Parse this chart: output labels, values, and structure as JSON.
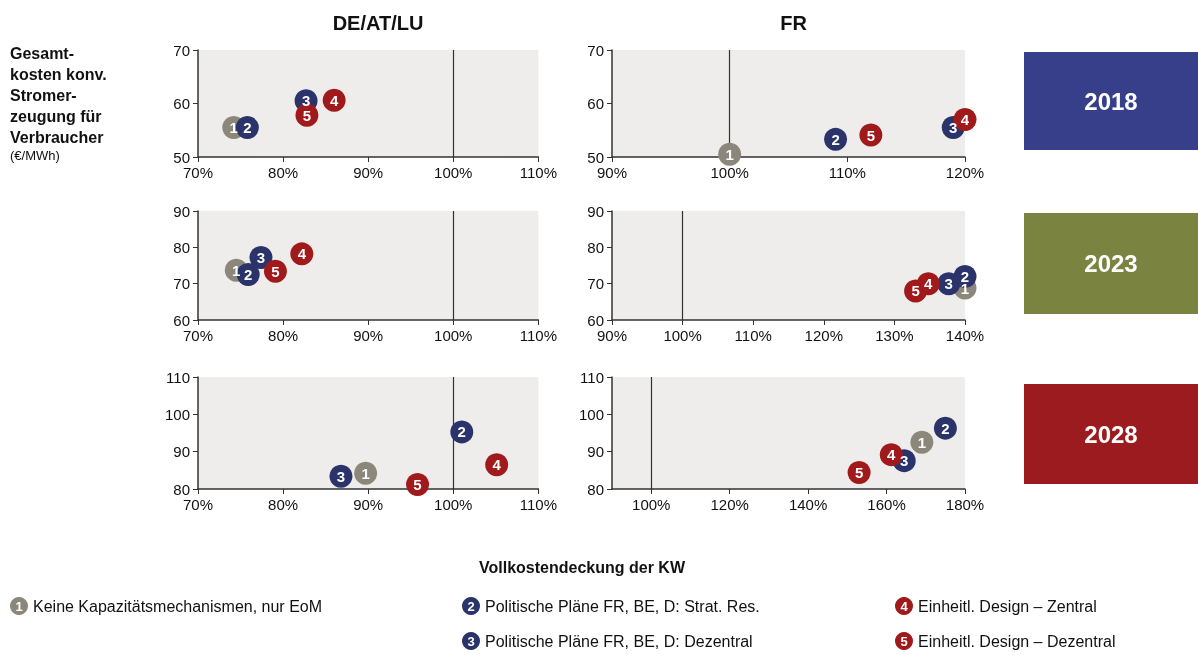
{
  "chart_data": [
    {
      "type": "scatter",
      "title": "DE/AT/LU",
      "ylabel": "Gesamt-\nkosten konv.\nStromer-\nzeugung für\nVerbraucher\n(€/MWh)",
      "marker": "circle",
      "xlim": [
        70,
        110
      ],
      "xticks": [
        {
          "value": 70,
          "label": "70%"
        },
        {
          "value": 80,
          "label": "80%"
        },
        {
          "value": 90,
          "label": "90%"
        },
        {
          "value": 100,
          "label": "100%"
        },
        {
          "value": 110,
          "label": "110%"
        }
      ],
      "ylim": [
        50,
        70
      ],
      "yticks": [
        50,
        60,
        70
      ],
      "ref_lines": [
        {
          "axis": "x",
          "value": 100,
          "color": "#333333"
        }
      ],
      "annotations": [
        {
          "text": "1",
          "x": 74.2,
          "y": 55.5
        },
        {
          "text": "2",
          "x": 75.8,
          "y": 55.5
        },
        {
          "text": "3",
          "x": 82.7,
          "y": 60.5
        },
        {
          "text": "4",
          "x": 86,
          "y": 60.6
        },
        {
          "text": "5",
          "x": 82.8,
          "y": 57.8
        }
      ],
      "series": [
        {
          "color": "#8b877a",
          "x": [
            74.2
          ],
          "values": [
            55.5
          ]
        },
        {
          "color": "#2b336b",
          "x": [
            75.8
          ],
          "values": [
            55.5
          ]
        },
        {
          "color": "#2b336b",
          "x": [
            82.7
          ],
          "values": [
            60.5
          ]
        },
        {
          "color": "#a01a1c",
          "x": [
            86
          ],
          "values": [
            60.6
          ]
        },
        {
          "color": "#a01a1c",
          "x": [
            82.8
          ],
          "values": [
            57.8
          ]
        }
      ]
    },
    {
      "type": "scatter",
      "title": "FR",
      "marker": "circle",
      "xlim": [
        90,
        120
      ],
      "xticks": [
        {
          "value": 90,
          "label": "90%"
        },
        {
          "value": 100,
          "label": "100%"
        },
        {
          "value": 110,
          "label": "110%"
        },
        {
          "value": 120,
          "label": "120%"
        }
      ],
      "ylim": [
        50,
        70
      ],
      "yticks": [
        50,
        60,
        70
      ],
      "ref_lines": [
        {
          "axis": "x",
          "value": 100,
          "color": "#333333"
        }
      ],
      "annotations": [
        "2018",
        {
          "text": "1",
          "x": 100,
          "y": 50.5
        },
        {
          "text": "2",
          "x": 109,
          "y": 53.3
        },
        {
          "text": "3",
          "x": 119,
          "y": 55.5
        },
        {
          "text": "4",
          "x": 120,
          "y": 57
        },
        {
          "text": "5",
          "x": 112,
          "y": 54.1
        }
      ],
      "series": [
        {
          "color": "#8b877a",
          "x": [
            100
          ],
          "values": [
            50.5
          ]
        },
        {
          "color": "#2b336b",
          "x": [
            109
          ],
          "values": [
            53.3
          ]
        },
        {
          "color": "#2b336b",
          "x": [
            119
          ],
          "values": [
            55.5
          ]
        },
        {
          "color": "#a01a1c",
          "x": [
            120
          ],
          "values": [
            57
          ]
        },
        {
          "color": "#a01a1c",
          "x": [
            112
          ],
          "values": [
            54.1
          ]
        }
      ]
    },
    {
      "type": "scatter",
      "marker": "circle",
      "xlim": [
        70,
        110
      ],
      "xticks": [
        {
          "value": 70,
          "label": "70%"
        },
        {
          "value": 80,
          "label": "80%"
        },
        {
          "value": 90,
          "label": "90%"
        },
        {
          "value": 100,
          "label": "100%"
        },
        {
          "value": 110,
          "label": "110%"
        }
      ],
      "ylim": [
        60,
        90
      ],
      "yticks": [
        60,
        70,
        80,
        90
      ],
      "ref_lines": [
        {
          "axis": "x",
          "value": 100,
          "color": "#333333"
        }
      ],
      "annotations": [
        {
          "text": "1",
          "x": 74.5,
          "y": 73.7
        },
        {
          "text": "2",
          "x": 75.9,
          "y": 72.5
        },
        {
          "text": "3",
          "x": 77.4,
          "y": 77.2
        },
        {
          "text": "4",
          "x": 82.2,
          "y": 78.2
        },
        {
          "text": "5",
          "x": 79.1,
          "y": 73.4
        }
      ],
      "series": [
        {
          "color": "#8b877a",
          "x": [
            74.5
          ],
          "values": [
            73.7
          ]
        },
        {
          "color": "#2b336b",
          "x": [
            75.9
          ],
          "values": [
            72.5
          ]
        },
        {
          "color": "#2b336b",
          "x": [
            77.4
          ],
          "values": [
            77.2
          ]
        },
        {
          "color": "#a01a1c",
          "x": [
            82.2
          ],
          "values": [
            78.2
          ]
        },
        {
          "color": "#a01a1c",
          "x": [
            79.1
          ],
          "values": [
            73.4
          ]
        }
      ]
    },
    {
      "type": "scatter",
      "marker": "circle",
      "xlim": [
        90,
        140
      ],
      "xticks": [
        {
          "value": 90,
          "label": "90%"
        },
        {
          "value": 100,
          "label": "100%"
        },
        {
          "value": 110,
          "label": "110%"
        },
        {
          "value": 120,
          "label": "120%"
        },
        {
          "value": 130,
          "label": "130%"
        },
        {
          "value": 140,
          "label": "140%"
        }
      ],
      "ylim": [
        60,
        90
      ],
      "yticks": [
        60,
        70,
        80,
        90
      ],
      "ref_lines": [
        {
          "axis": "x",
          "value": 100,
          "color": "#333333"
        }
      ],
      "annotations": [
        "2023",
        {
          "text": "1",
          "x": 140,
          "y": 68.8
        },
        {
          "text": "2",
          "x": 140,
          "y": 72
        },
        {
          "text": "3",
          "x": 137.7,
          "y": 70
        },
        {
          "text": "4",
          "x": 134.8,
          "y": 70
        },
        {
          "text": "5",
          "x": 133,
          "y": 68
        }
      ],
      "series": [
        {
          "color": "#8b877a",
          "x": [
            140
          ],
          "values": [
            68.8
          ]
        },
        {
          "color": "#2b336b",
          "x": [
            140
          ],
          "values": [
            72
          ]
        },
        {
          "color": "#2b336b",
          "x": [
            137.7
          ],
          "values": [
            70
          ]
        },
        {
          "color": "#a01a1c",
          "x": [
            134.8
          ],
          "values": [
            70
          ]
        },
        {
          "color": "#a01a1c",
          "x": [
            133
          ],
          "values": [
            68
          ]
        }
      ]
    },
    {
      "type": "scatter",
      "marker": "circle",
      "xlim": [
        70,
        110
      ],
      "xticks": [
        {
          "value": 70,
          "label": "70%"
        },
        {
          "value": 80,
          "label": "80%"
        },
        {
          "value": 90,
          "label": "90%"
        },
        {
          "value": 100,
          "label": "100%"
        },
        {
          "value": 110,
          "label": "110%"
        }
      ],
      "ylim": [
        80,
        110
      ],
      "yticks": [
        80,
        90,
        100,
        110
      ],
      "ref_lines": [
        {
          "axis": "x",
          "value": 100,
          "color": "#333333"
        }
      ],
      "annotations": [
        {
          "text": "1",
          "x": 89.7,
          "y": 84.2
        },
        {
          "text": "2",
          "x": 101,
          "y": 95.3
        },
        {
          "text": "3",
          "x": 86.8,
          "y": 83.4
        },
        {
          "text": "4",
          "x": 105.1,
          "y": 86.5
        },
        {
          "text": "5",
          "x": 95.8,
          "y": 81.2
        }
      ],
      "series": [
        {
          "color": "#8b877a",
          "x": [
            89.7
          ],
          "values": [
            84.2
          ]
        },
        {
          "color": "#2b336b",
          "x": [
            101
          ],
          "values": [
            95.3
          ]
        },
        {
          "color": "#2b336b",
          "x": [
            86.8
          ],
          "values": [
            83.4
          ]
        },
        {
          "color": "#a01a1c",
          "x": [
            105.1
          ],
          "values": [
            86.5
          ]
        },
        {
          "color": "#a01a1c",
          "x": [
            95.8
          ],
          "values": [
            81.2
          ]
        }
      ]
    },
    {
      "type": "scatter",
      "xlabel": "Vollkostendeckung der KW",
      "legend": "bottom",
      "marker": "circle",
      "xlim": [
        90,
        180
      ],
      "xticks": [
        {
          "value": 100,
          "label": "100%"
        },
        {
          "value": 120,
          "label": "120%"
        },
        {
          "value": 140,
          "label": "140%"
        },
        {
          "value": 160,
          "label": "160%"
        },
        {
          "value": 180,
          "label": "180%"
        }
      ],
      "ylim": [
        80,
        110
      ],
      "yticks": [
        80,
        90,
        100,
        110
      ],
      "ref_lines": [
        {
          "axis": "x",
          "value": 100,
          "color": "#333333"
        }
      ],
      "annotations": [
        "2028",
        {
          "text": "1",
          "x": 169,
          "y": 92.5
        },
        {
          "text": "2",
          "x": 175,
          "y": 96.3
        },
        {
          "text": "3",
          "x": 164.5,
          "y": 87.6
        },
        {
          "text": "4",
          "x": 161.2,
          "y": 89.2
        },
        {
          "text": "5",
          "x": 153,
          "y": 84.4
        }
      ],
      "series": [
        {
          "name": "Keine Kapazitätsmechanismen, nur EoM",
          "color": "#8b877a",
          "x": [
            169
          ],
          "values": [
            92.5
          ]
        },
        {
          "name": "Politische Pläne FR, BE, D: Strat. Res.",
          "color": "#2b336b",
          "x": [
            175
          ],
          "values": [
            96.3
          ]
        },
        {
          "name": "Politische Pläne FR, BE, D: Dezentral",
          "color": "#2b336b",
          "x": [
            164.5
          ],
          "values": [
            87.6
          ]
        },
        {
          "name": "Einheitl. Design – Zentral",
          "color": "#a01a1c",
          "x": [
            161.2
          ],
          "values": [
            89.2
          ]
        },
        {
          "name": "Einheitl. Design – Dezentral",
          "color": "#a01a1c",
          "x": [
            153
          ],
          "values": [
            84.4
          ]
        }
      ]
    }
  ]
}
